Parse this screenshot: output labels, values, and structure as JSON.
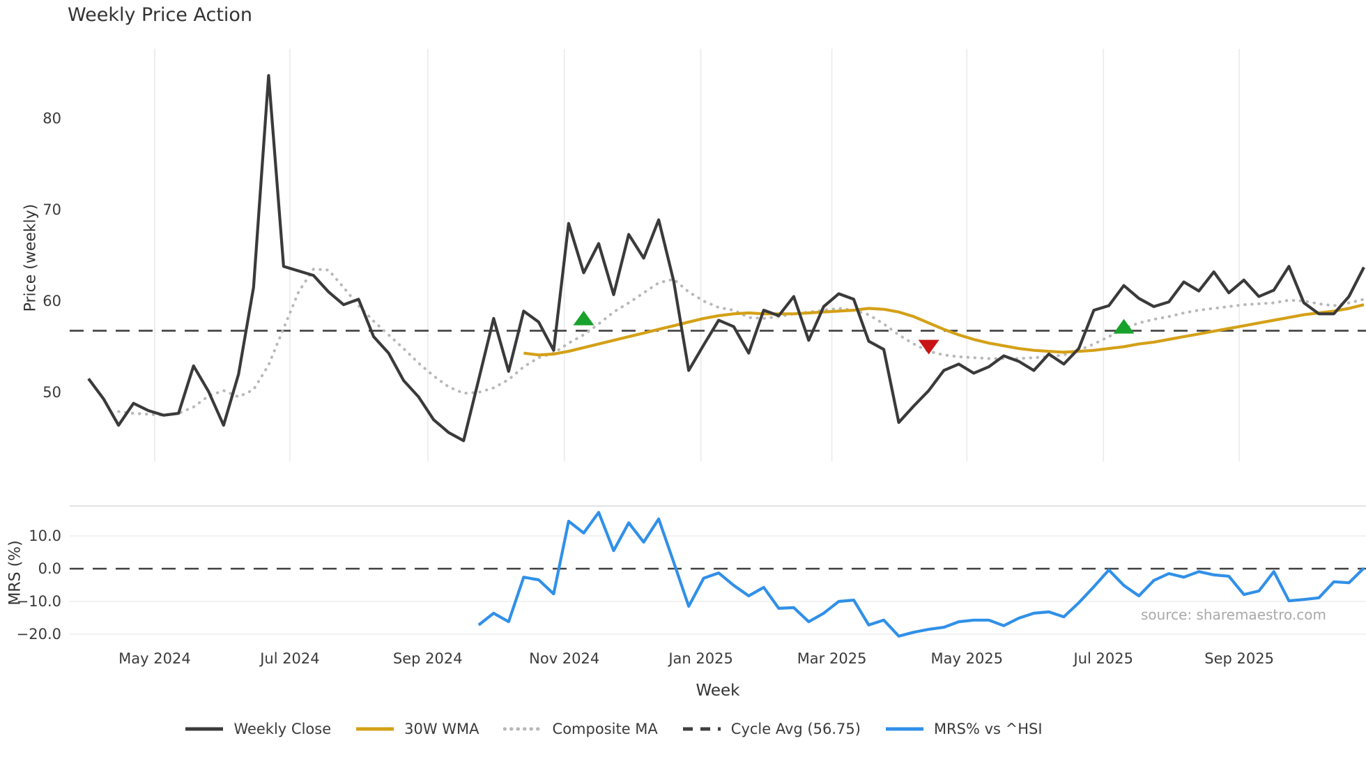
{
  "title": "Weekly Price Action",
  "source": "source: sharemaestro.com",
  "axes": {
    "price_ylabel": "Price (weekly)",
    "mrs_ylabel": "MRS (%)",
    "xlabel": "Week"
  },
  "colors": {
    "weekly_close": "#3a3a3a",
    "wma_30w": "#d4a017",
    "composite_ma": "#b8b8b8",
    "cycle_avg": "#3f3f3f",
    "mrs_line": "#3090e8",
    "buy_marker": "#18a22c",
    "sell_marker": "#c81414",
    "grid_vertical": "#e9ebee",
    "grid_horizontal": "#ededed",
    "panel_border": "#d9d9d9"
  },
  "legend": {
    "items": [
      {
        "label": "Weekly Close",
        "style": "solid",
        "color": "#3a3a3a"
      },
      {
        "label": "30W WMA",
        "style": "solid",
        "color": "#d4a017"
      },
      {
        "label": "Composite MA",
        "style": "dotted",
        "color": "#b8b8b8"
      },
      {
        "label": "Cycle Avg (56.75)",
        "style": "dashed",
        "color": "#3f3f3f"
      },
      {
        "label": "MRS% vs ^HSI",
        "style": "solid",
        "color": "#3090e8"
      }
    ]
  },
  "chart_data": {
    "type": "line",
    "x_axis": {
      "label": "Week",
      "total_weeks": 86,
      "ticks": [
        {
          "label": "May 2024",
          "week_index": 4.41
        },
        {
          "label": "Jul 2024",
          "week_index": 13.42
        },
        {
          "label": "Sep 2024",
          "week_index": 22.61
        },
        {
          "label": "Nov 2024",
          "week_index": 31.71
        },
        {
          "label": "Jan 2025",
          "week_index": 40.81
        },
        {
          "label": "Mar 2025",
          "week_index": 49.54
        },
        {
          "label": "May 2025",
          "week_index": 58.54
        },
        {
          "label": "Jul 2025",
          "week_index": 67.64
        },
        {
          "label": "Sep 2025",
          "week_index": 76.69
        }
      ]
    },
    "price_panel": {
      "ylabel": "Price (weekly)",
      "ylim": [
        42.5,
        87.5
      ],
      "yticks": [
        {
          "label": "80",
          "value": 80
        },
        {
          "label": "70",
          "value": 70
        },
        {
          "label": "60",
          "value": 60
        },
        {
          "label": "50",
          "value": 50
        }
      ],
      "cycle_avg_value": 56.75,
      "series": [
        {
          "name": "Weekly Close",
          "style": "solid",
          "color": "#3a3a3a",
          "start_index": 0,
          "values": [
            51.5,
            49.3,
            46.4,
            48.8,
            48.0,
            47.5,
            47.7,
            52.9,
            50.1,
            46.4,
            52.0,
            61.5,
            84.7,
            63.8,
            63.3,
            62.8,
            61.0,
            59.6,
            60.2,
            56.1,
            54.3,
            51.3,
            49.5,
            47.0,
            45.6,
            44.7,
            51.4,
            58.1,
            52.3,
            58.9,
            57.7,
            54.6,
            68.5,
            63.1,
            66.3,
            60.7,
            67.3,
            64.7,
            68.9,
            62.2,
            52.4,
            55.2,
            57.9,
            57.2,
            54.3,
            59.0,
            58.4,
            60.5,
            55.7,
            59.4,
            60.8,
            60.2,
            55.6,
            54.7,
            46.7,
            48.5,
            50.2,
            52.4,
            53.1,
            52.1,
            52.8,
            54.0,
            53.4,
            52.4,
            54.2,
            53.1,
            54.8,
            59.0,
            59.5,
            61.7,
            60.3,
            59.4,
            59.9,
            62.1,
            61.1,
            63.2,
            60.9,
            62.3,
            60.5,
            61.2,
            63.8,
            59.8,
            58.6,
            58.6,
            60.5,
            63.7
          ]
        },
        {
          "name": "30W WMA",
          "style": "solid",
          "color": "#d4a017",
          "start_index": 29,
          "values": [
            54.3,
            54.1,
            54.2,
            54.5,
            54.9,
            55.3,
            55.7,
            56.1,
            56.5,
            56.9,
            57.3,
            57.7,
            58.1,
            58.4,
            58.6,
            58.7,
            58.6,
            58.6,
            58.6,
            58.7,
            58.8,
            58.9,
            59.0,
            59.2,
            59.1,
            58.8,
            58.3,
            57.6,
            56.9,
            56.3,
            55.8,
            55.4,
            55.1,
            54.8,
            54.6,
            54.5,
            54.4,
            54.5,
            54.6,
            54.8,
            55.0,
            55.3,
            55.5,
            55.8,
            56.1,
            56.4,
            56.7,
            57.0,
            57.3,
            57.6,
            57.9,
            58.2,
            58.5,
            58.7,
            58.9,
            59.2,
            59.6
          ]
        },
        {
          "name": "Composite MA",
          "style": "dotted",
          "color": "#b8b8b8",
          "start_index": 2,
          "values": [
            47.9,
            47.7,
            47.6,
            47.5,
            47.7,
            48.4,
            49.6,
            50.2,
            49.5,
            50.3,
            53.0,
            57.0,
            61.0,
            63.5,
            63.4,
            61.5,
            59.5,
            57.8,
            56.3,
            54.8,
            53.2,
            51.8,
            50.6,
            49.9,
            50.0,
            50.5,
            51.4,
            52.8,
            53.8,
            54.3,
            55.4,
            56.3,
            57.5,
            58.8,
            59.8,
            60.9,
            62.0,
            62.4,
            61.0,
            60.0,
            59.3,
            59.0,
            58.2,
            58.1,
            58.3,
            58.6,
            58.8,
            59.0,
            59.2,
            59.0,
            58.5,
            57.5,
            56.3,
            55.3,
            54.5,
            54.1,
            53.9,
            53.8,
            53.7,
            53.7,
            53.7,
            53.8,
            53.9,
            54.1,
            54.6,
            55.3,
            56.1,
            57.0,
            57.6,
            58.0,
            58.3,
            58.7,
            59.0,
            59.2,
            59.4,
            59.6,
            59.7,
            59.8,
            60.1,
            60.0,
            59.7,
            59.5,
            59.8,
            60.2
          ]
        }
      ],
      "markers": [
        {
          "type": "buy",
          "shape": "triangle-up",
          "color": "#18a22c",
          "index": 33,
          "value": 58.1
        },
        {
          "type": "sell",
          "shape": "triangle-down",
          "color": "#c81414",
          "index": 56,
          "value": 55.0
        },
        {
          "type": "buy",
          "shape": "triangle-up",
          "color": "#18a22c",
          "index": 69,
          "value": 57.2
        }
      ]
    },
    "mrs_panel": {
      "ylabel": "MRS (%)",
      "ylim": [
        -23,
        19
      ],
      "yticks": [
        {
          "label": "10.0",
          "value": 10
        },
        {
          "label": "0.0",
          "value": 0
        },
        {
          "label": "−10.0",
          "value": -10
        },
        {
          "label": "−20.0",
          "value": -20
        }
      ],
      "zero_line_value": 0,
      "series": [
        {
          "name": "MRS% vs ^HSI",
          "style": "solid",
          "color": "#3090e8",
          "start_index": 26,
          "values": [
            -17.2,
            -13.6,
            -16.2,
            -2.6,
            -3.4,
            -7.7,
            14.5,
            10.9,
            17.2,
            5.5,
            14.0,
            8.1,
            15.2,
            2.0,
            -11.5,
            -2.9,
            -1.3,
            -5.1,
            -8.3,
            -5.7,
            -12.1,
            -11.9,
            -16.2,
            -13.6,
            -10.0,
            -9.6,
            -17.2,
            -15.7,
            -20.6,
            -19.4,
            -18.5,
            -17.9,
            -16.2,
            -15.7,
            -15.7,
            -17.4,
            -15.1,
            -13.6,
            -13.2,
            -14.7,
            -10.4,
            -5.5,
            -0.4,
            -5.1,
            -8.3,
            -3.6,
            -1.5,
            -2.6,
            -0.9,
            -1.9,
            -2.3,
            -7.9,
            -6.8,
            -0.9,
            -9.8,
            -9.4,
            -8.9,
            -4.0,
            -4.3,
            0.2
          ]
        }
      ]
    }
  }
}
